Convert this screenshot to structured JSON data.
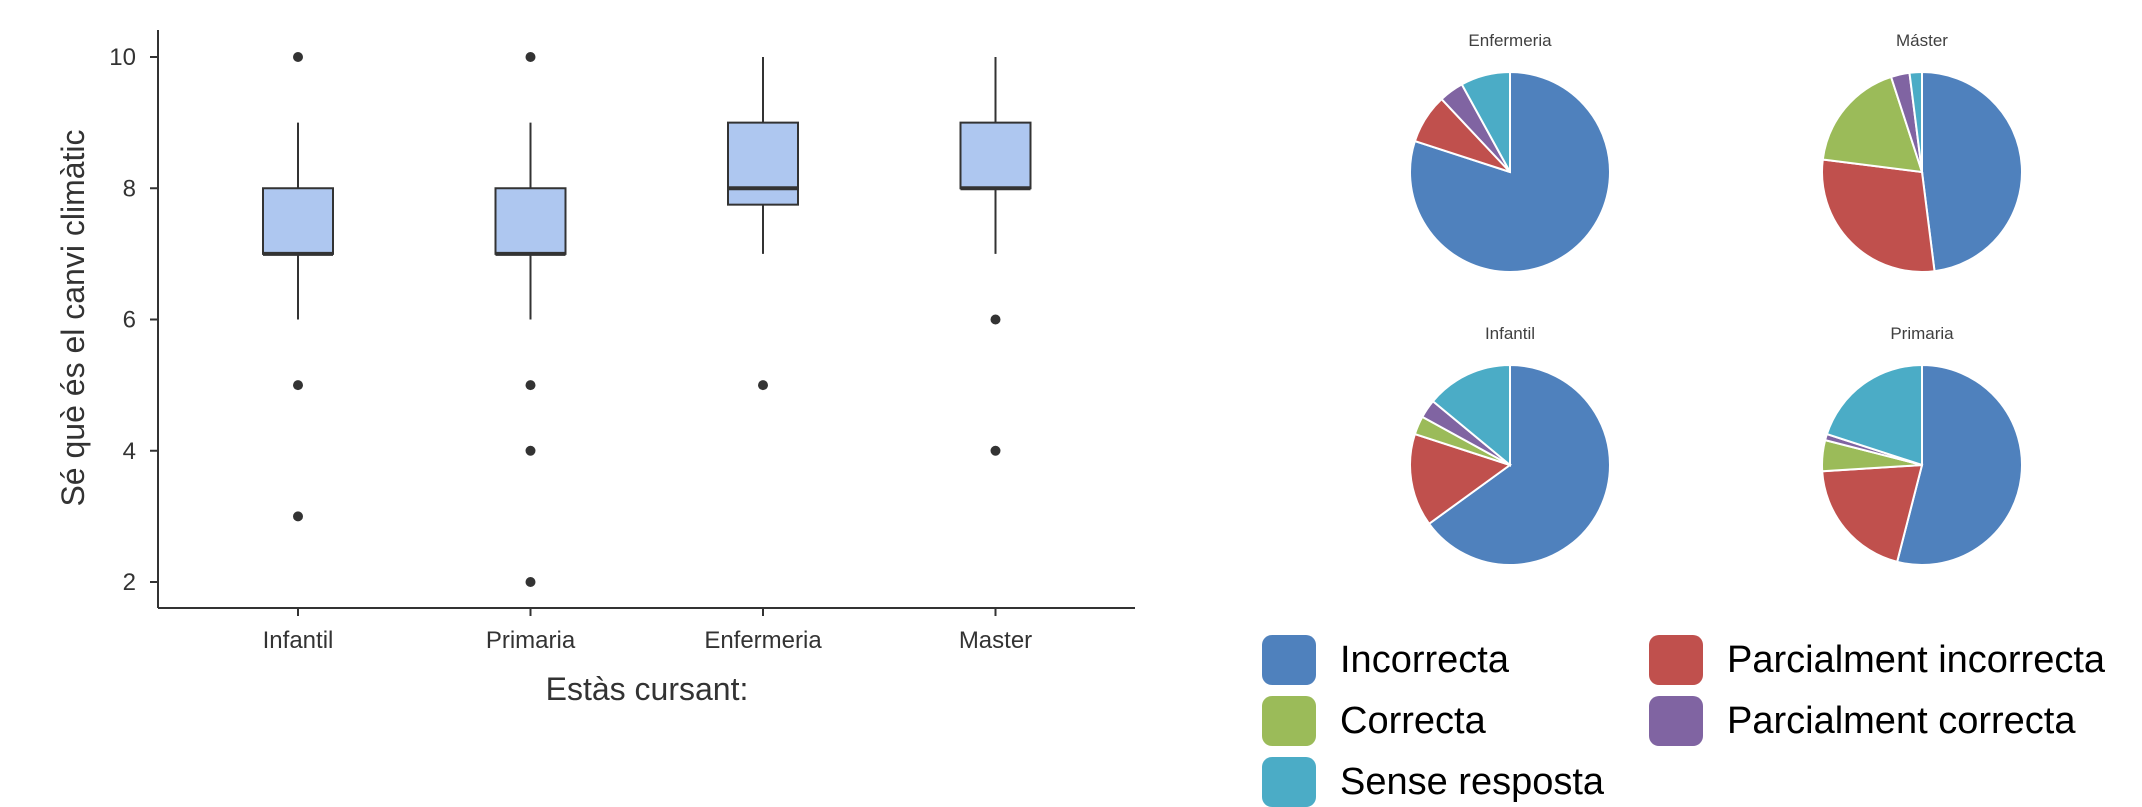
{
  "boxplot": {
    "ylabel": "Sé què és el canvi climàtic",
    "xlabel": "Estàs cursant:",
    "categories": [
      "Infantil",
      "Primaria",
      "Enfermeria",
      "Master"
    ],
    "yticks": [
      2,
      4,
      6,
      8,
      10
    ]
  },
  "pies": [
    {
      "title": "Enfermeria"
    },
    {
      "title": "Máster"
    },
    {
      "title": "Infantil"
    },
    {
      "title": "Primaria"
    }
  ],
  "legend": [
    {
      "label": "Incorrecta",
      "color": "#4f81bd"
    },
    {
      "label": "Parcialment incorrecta",
      "color": "#c0504d"
    },
    {
      "label": "Correcta",
      "color": "#9bbb59"
    },
    {
      "label": "Parcialment correcta",
      "color": "#8064a2"
    },
    {
      "label": "Sense resposta",
      "color": "#4bacc6"
    }
  ],
  "chart_data": [
    {
      "type": "boxplot",
      "xlabel": "Estàs cursant:",
      "ylabel": "Sé què és el canvi climàtic",
      "ylim": [
        1.7,
        10.4
      ],
      "yticks": [
        2,
        4,
        6,
        8,
        10
      ],
      "categories": [
        "Infantil",
        "Primaria",
        "Enfermeria",
        "Master"
      ],
      "boxes": [
        {
          "category": "Infantil",
          "whisker_low": 6,
          "q1": 7,
          "median": 7,
          "q3": 8,
          "whisker_high": 9,
          "outliers": [
            10,
            5,
            3
          ]
        },
        {
          "category": "Primaria",
          "whisker_low": 6,
          "q1": 7,
          "median": 7,
          "q3": 8,
          "whisker_high": 9,
          "outliers": [
            10,
            5,
            4,
            2
          ]
        },
        {
          "category": "Enfermeria",
          "whisker_low": 7,
          "q1": 7.75,
          "median": 8,
          "q3": 9,
          "whisker_high": 10,
          "outliers": [
            5
          ]
        },
        {
          "category": "Master",
          "whisker_low": 7,
          "q1": 8,
          "median": 8,
          "q3": 9,
          "whisker_high": 10,
          "outliers": [
            6,
            4
          ]
        }
      ],
      "box_color": "#aec7f0",
      "grid": false
    },
    {
      "type": "pie",
      "title": "Enfermeria",
      "slices": [
        {
          "label": "Incorrecta",
          "value": 80
        },
        {
          "label": "Parcialment incorrecta",
          "value": 8
        },
        {
          "label": "Correcta",
          "value": 0
        },
        {
          "label": "Parcialment correcta",
          "value": 4
        },
        {
          "label": "Sense resposta",
          "value": 8
        }
      ]
    },
    {
      "type": "pie",
      "title": "Máster",
      "slices": [
        {
          "label": "Incorrecta",
          "value": 48
        },
        {
          "label": "Parcialment incorrecta",
          "value": 29
        },
        {
          "label": "Correcta",
          "value": 18
        },
        {
          "label": "Parcialment correcta",
          "value": 3
        },
        {
          "label": "Sense resposta",
          "value": 2
        }
      ]
    },
    {
      "type": "pie",
      "title": "Infantil",
      "slices": [
        {
          "label": "Incorrecta",
          "value": 65
        },
        {
          "label": "Parcialment incorrecta",
          "value": 15
        },
        {
          "label": "Correcta",
          "value": 3
        },
        {
          "label": "Parcialment correcta",
          "value": 3
        },
        {
          "label": "Sense resposta",
          "value": 14
        }
      ]
    },
    {
      "type": "pie",
      "title": "Primaria",
      "slices": [
        {
          "label": "Incorrecta",
          "value": 54
        },
        {
          "label": "Parcialment incorrecta",
          "value": 20
        },
        {
          "label": "Correcta",
          "value": 5
        },
        {
          "label": "Parcialment correcta",
          "value": 1
        },
        {
          "label": "Sense resposta",
          "value": 20
        }
      ]
    }
  ]
}
